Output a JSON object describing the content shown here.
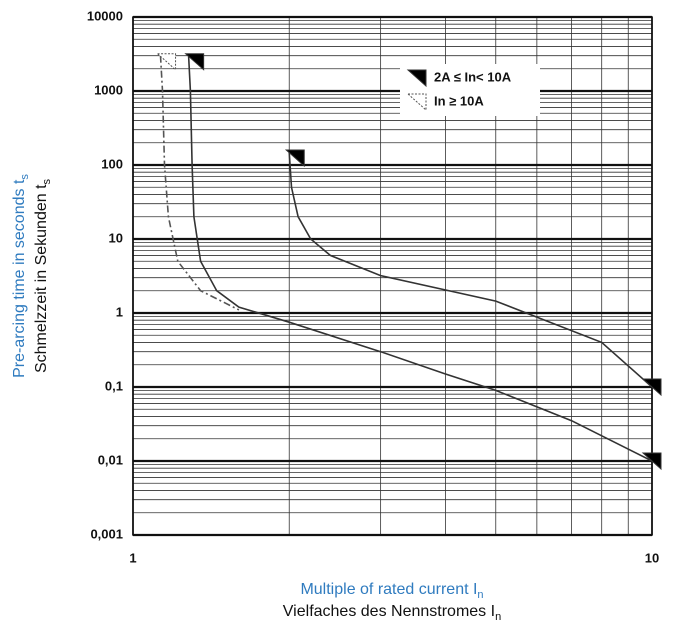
{
  "chart_data": {
    "type": "line",
    "log_x": true,
    "log_y": true,
    "grid": true,
    "y_label": {
      "blue": {
        "text": "Pre-arcing time in seconds t",
        "sub": "s"
      },
      "black": {
        "text": "Schmelzzeit in Sekunden t",
        "sub": "s"
      }
    },
    "x_label": {
      "blue": {
        "text": "Multiple of rated current I",
        "sub": "n"
      },
      "black": {
        "text": "Vielfaches des Nennstromes I",
        "sub": "n"
      }
    },
    "xlim": [
      1,
      10
    ],
    "xticks": [
      1,
      10
    ],
    "ylim": [
      0.001,
      10000
    ],
    "yticks": [
      10000,
      1000,
      100,
      10,
      1,
      {
        "value": 0.1,
        "label": "0,1"
      },
      {
        "value": 0.01,
        "label": "0,01"
      },
      {
        "value": 0.001,
        "label": "0,001"
      }
    ],
    "series": [
      {
        "name": "2A ≤ In< 10A",
        "color": "#333333",
        "style": "solid",
        "curves": [
          {
            "x": [
              1.28,
              1.29,
              1.3,
              1.31,
              1.35,
              1.45,
              1.6,
              2,
              3,
              4,
              5,
              7,
              10
            ],
            "values": [
              3000,
              1000,
              100,
              20,
              5,
              2,
              1.2,
              0.75,
              0.3,
              0.15,
              0.09,
              0.035,
              0.01
            ]
          },
          {
            "x": [
              2,
              2.02,
              2.08,
              2.2,
              2.4,
              3,
              5,
              8,
              10
            ],
            "values": [
              150,
              50,
              20,
              10,
              6,
              3.2,
              1.45,
              0.4,
              0.1
            ]
          }
        ]
      },
      {
        "name": "In ≥ 10A",
        "color": "#555555",
        "style": "dashed",
        "curves": [
          {
            "x": [
              1.13,
              1.14,
              1.15,
              1.17,
              1.22,
              1.35,
              1.6
            ],
            "values": [
              3000,
              1000,
              100,
              20,
              5,
              2,
              1.1
            ]
          }
        ]
      }
    ]
  }
}
